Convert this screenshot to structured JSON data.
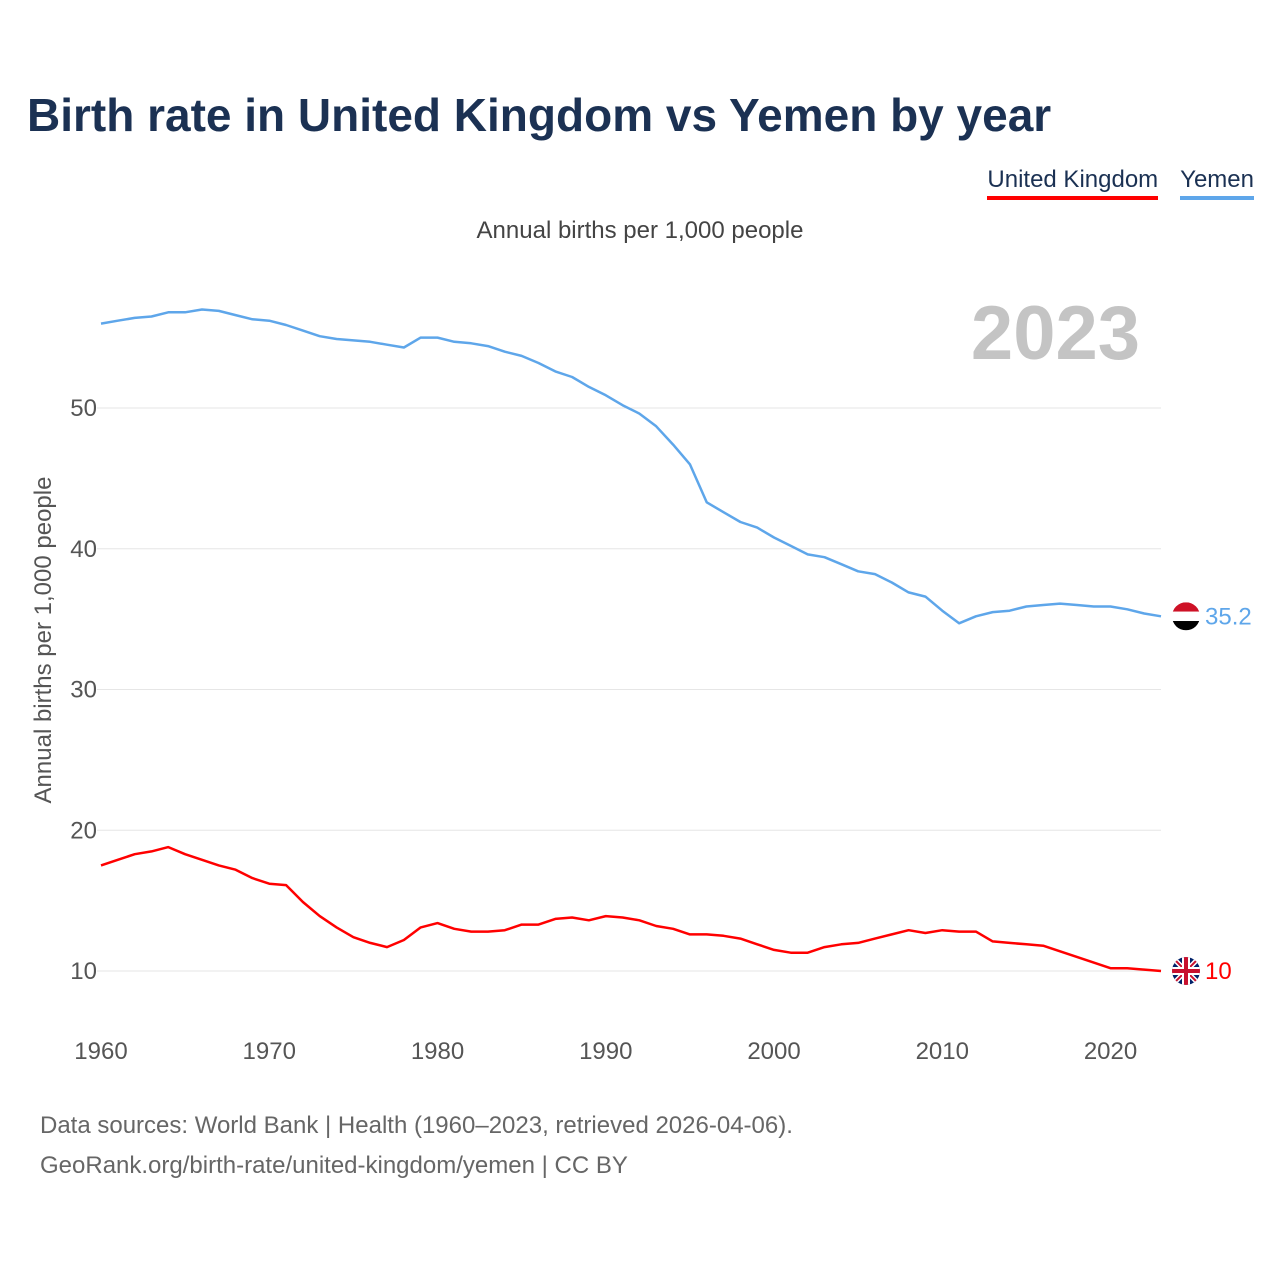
{
  "chart_data": {
    "type": "line",
    "title": "Birth rate in United Kingdom vs Yemen by year",
    "subtitle": "Annual births per 1,000 people",
    "ylabel": "Annual births per 1,000 people",
    "xlabel": "",
    "year_label": "2023",
    "xlim": [
      1960,
      2023
    ],
    "ylim": [
      5,
      60
    ],
    "x_ticks": [
      1960,
      1970,
      1980,
      1990,
      2000,
      2010,
      2020
    ],
    "y_ticks": [
      10,
      20,
      30,
      40,
      50
    ],
    "grid": true,
    "legend_position": "top-right",
    "x": [
      1960,
      1961,
      1962,
      1963,
      1964,
      1965,
      1966,
      1967,
      1968,
      1969,
      1970,
      1971,
      1972,
      1973,
      1974,
      1975,
      1976,
      1977,
      1978,
      1979,
      1980,
      1981,
      1982,
      1983,
      1984,
      1985,
      1986,
      1987,
      1988,
      1989,
      1990,
      1991,
      1992,
      1993,
      1994,
      1995,
      1996,
      1997,
      1998,
      1999,
      2000,
      2001,
      2002,
      2003,
      2004,
      2005,
      2006,
      2007,
      2008,
      2009,
      2010,
      2011,
      2012,
      2013,
      2014,
      2015,
      2016,
      2017,
      2018,
      2019,
      2020,
      2021,
      2022,
      2023
    ],
    "series": [
      {
        "name": "United Kingdom",
        "color": "#ff0000",
        "end_label": "10",
        "values": [
          17.5,
          17.9,
          18.3,
          18.5,
          18.8,
          18.3,
          17.9,
          17.5,
          17.2,
          16.6,
          16.2,
          16.1,
          14.9,
          13.9,
          13.1,
          12.4,
          12.0,
          11.7,
          12.2,
          13.1,
          13.4,
          13.0,
          12.8,
          12.8,
          12.9,
          13.3,
          13.3,
          13.7,
          13.8,
          13.6,
          13.9,
          13.8,
          13.6,
          13.2,
          13.0,
          12.6,
          12.6,
          12.5,
          12.3,
          11.9,
          11.5,
          11.3,
          11.3,
          11.7,
          11.9,
          12.0,
          12.3,
          12.6,
          12.9,
          12.7,
          12.9,
          12.8,
          12.8,
          12.1,
          12.0,
          11.9,
          11.8,
          11.4,
          11.0,
          10.6,
          10.2,
          10.2,
          10.1,
          10.0
        ]
      },
      {
        "name": "Yemen",
        "color": "#5ea6ea",
        "end_label": "35.2",
        "values": [
          56.0,
          56.2,
          56.4,
          56.5,
          56.8,
          56.8,
          57.0,
          56.9,
          56.6,
          56.3,
          56.2,
          55.9,
          55.5,
          55.1,
          54.9,
          54.8,
          54.7,
          54.5,
          54.3,
          55.0,
          55.0,
          54.7,
          54.6,
          54.4,
          54.0,
          53.7,
          53.2,
          52.6,
          52.2,
          51.5,
          50.9,
          50.2,
          49.6,
          48.7,
          47.4,
          46.0,
          43.3,
          42.6,
          41.9,
          41.5,
          40.8,
          40.2,
          39.6,
          39.4,
          38.9,
          38.4,
          38.2,
          37.6,
          36.9,
          36.6,
          35.6,
          34.7,
          35.2,
          35.5,
          35.6,
          35.9,
          36.0,
          36.1,
          36.0,
          35.9,
          35.9,
          35.7,
          35.4,
          35.2
        ]
      }
    ]
  },
  "footer": {
    "line1": "Data sources: World Bank | Health (1960–2023, retrieved 2026-04-06).",
    "line2": "GeoRank.org/birth-rate/united-kingdom/yemen | CC BY"
  }
}
